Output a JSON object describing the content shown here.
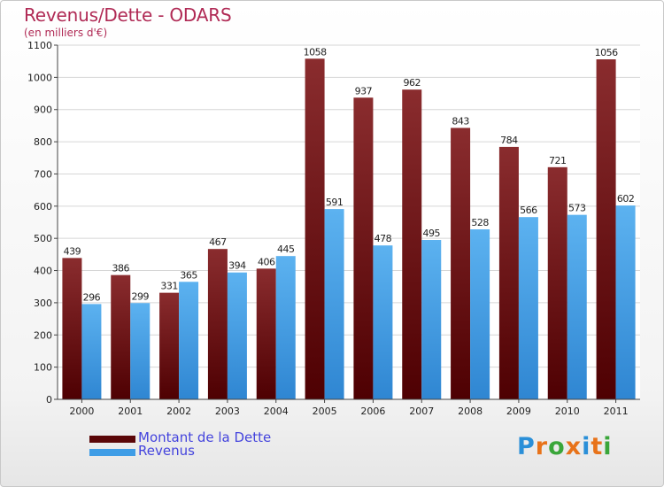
{
  "chart_data": {
    "type": "bar",
    "title": "Revenus/Dette - ODARS",
    "subtitle": "(en milliers d'€)",
    "categories": [
      "2000",
      "2001",
      "2002",
      "2003",
      "2004",
      "2005",
      "2006",
      "2007",
      "2008",
      "2009",
      "2010",
      "2011"
    ],
    "series": [
      {
        "name": "Montant de la Dette",
        "color": "#7a1416",
        "values": [
          439,
          386,
          331,
          467,
          406,
          1058,
          937,
          962,
          843,
          784,
          721,
          1056
        ]
      },
      {
        "name": "Revenus",
        "color": "#4aa3e8",
        "values": [
          296,
          299,
          365,
          394,
          445,
          591,
          478,
          495,
          528,
          566,
          573,
          602
        ]
      }
    ],
    "ylim": [
      0,
      1100
    ],
    "yticks": [
      0,
      100,
      200,
      300,
      400,
      500,
      600,
      700,
      800,
      900,
      1000,
      1100
    ],
    "grid": true,
    "legend_position": "bottom-left"
  },
  "logo": {
    "letters": [
      "P",
      "r",
      "o",
      "x",
      "i",
      "t",
      "i"
    ],
    "colors": [
      "#2a8fd8",
      "#e8731a",
      "#3aa63a",
      "#e8731a",
      "#2a8fd8",
      "#e8731a",
      "#3aa63a"
    ]
  }
}
